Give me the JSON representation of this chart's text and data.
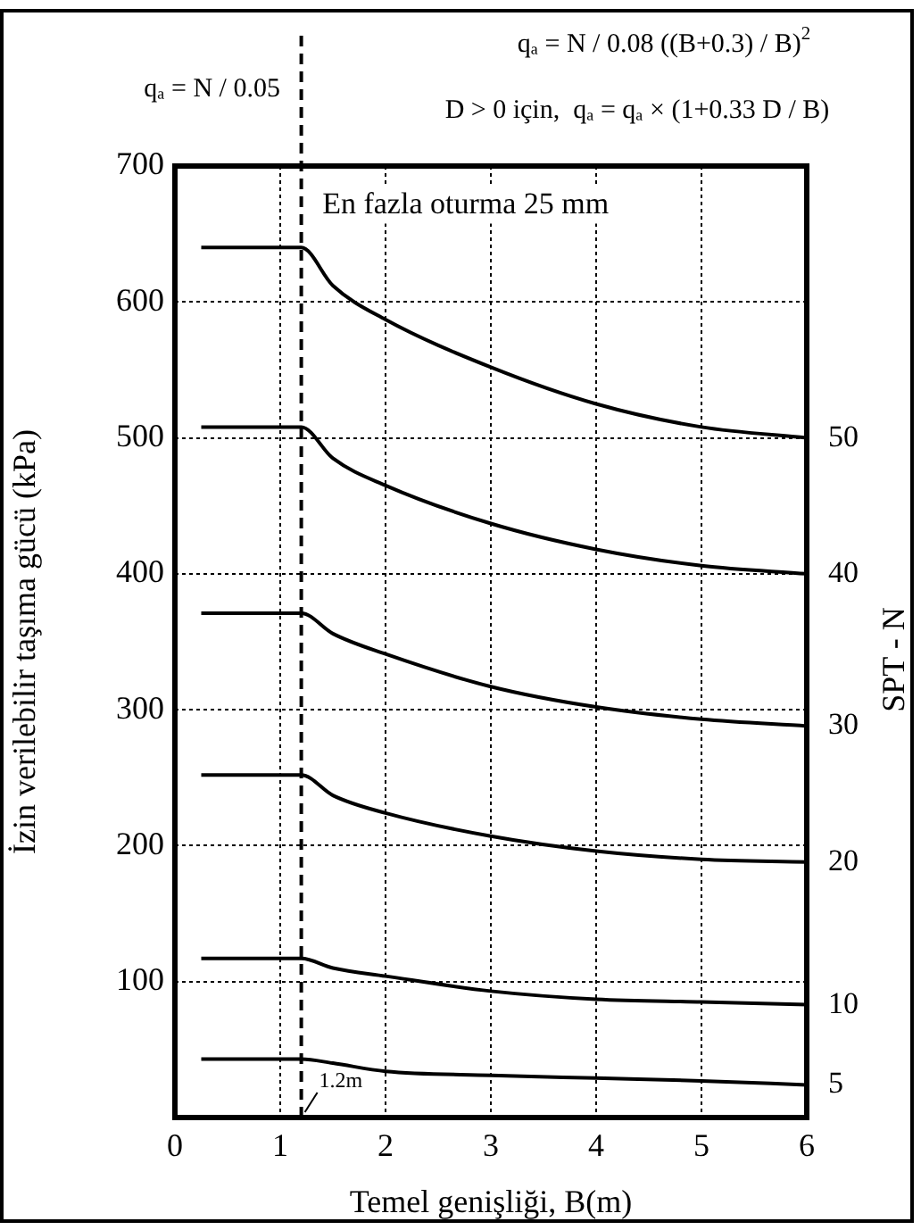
{
  "chart_data": {
    "type": "line",
    "xlabel": "Temel genişliği, B(m)",
    "ylabel": "İzin verilebilir taşıma gücü (kPa)",
    "y2label": "SPT - N",
    "annotations": [
      "En fazla oturma 25 mm",
      "qₐ = N / 0.05",
      "qₐ = N / 0.08 ((B+0.3) / B)$^{2}$",
      "D > 0 için,  qₐ = qₐ × (1+0.33 D / B)"
    ],
    "x": [
      0.25,
      1.2,
      1.5,
      2,
      3,
      4,
      5,
      6
    ],
    "series": [
      {
        "name": "50",
        "color": "#000000",
        "values": [
          640,
          640,
          612,
          587,
          552,
          525,
          508,
          500
        ]
      },
      {
        "name": "40",
        "color": "#000000",
        "values": [
          508,
          508,
          485,
          465,
          437,
          418,
          406,
          400
        ]
      },
      {
        "name": "30",
        "color": "#000000",
        "values": [
          371,
          371,
          356,
          341,
          317,
          302,
          293,
          288
        ]
      },
      {
        "name": "20",
        "color": "#000000",
        "values": [
          252,
          252,
          237,
          224,
          207,
          196,
          190,
          188
        ]
      },
      {
        "name": "10",
        "color": "#000000",
        "values": [
          117,
          117,
          110,
          104,
          93,
          87,
          85,
          83
        ]
      },
      {
        "name": "5",
        "color": "#000000",
        "values": [
          43,
          43,
          40,
          34,
          31,
          29,
          27,
          24
        ]
      }
    ],
    "xlim": [
      0,
      6
    ],
    "xticks": [
      0,
      1,
      2,
      3,
      4,
      5,
      6
    ],
    "ylim": [
      0,
      700
    ],
    "yticks": [
      100,
      200,
      300,
      400,
      500,
      600,
      700
    ],
    "grid": true,
    "legend": false,
    "marker": "none",
    "line_style": "solid",
    "ref_lines": [
      {
        "axis": "x",
        "value": 1.2,
        "label": "1.2m",
        "line_style": "dashed"
      }
    ]
  }
}
